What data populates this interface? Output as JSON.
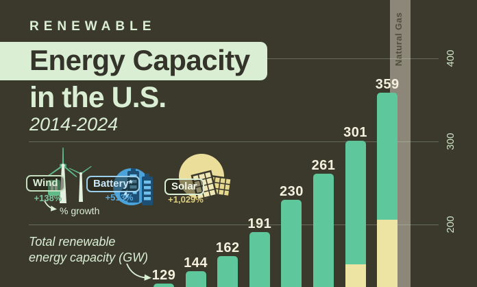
{
  "header": {
    "kicker": "RENEWABLE",
    "title_highlight": "Energy Capacity",
    "title_line2": "in the U.S.",
    "period": "2014-2024"
  },
  "legend": {
    "wind": {
      "label": "Wind",
      "growth": "+138%"
    },
    "battery": {
      "label": "Battery*",
      "growth": "+513%"
    },
    "solar": {
      "label": "Solar",
      "growth": "+1,029%"
    },
    "note": "% growth"
  },
  "chart_note": {
    "line1": "Total renewable",
    "line2": "energy capacity (GW)"
  },
  "chart_data": {
    "type": "bar",
    "title": "Renewable Energy Capacity in the U.S. 2014-2024",
    "ylabel": "Total renewable energy capacity (GW)",
    "unit": "GW",
    "yaxis": {
      "ticks": [
        400,
        300,
        200
      ],
      "visible_range_gw": [
        125,
        440
      ]
    },
    "bars": [
      {
        "value": 129
      },
      {
        "value": 144
      },
      {
        "value": 162
      },
      {
        "value": 191
      },
      {
        "value": 230
      },
      {
        "value": 261
      },
      {
        "value": 301,
        "solar_segment_top_gw": 152
      },
      {
        "value": 359,
        "solar_segment_top_gw": 206
      }
    ],
    "reference_bar": {
      "label": "Natural Gas"
    },
    "colors": {
      "background": "#3B392C",
      "renewable_bar": "#5EC89C",
      "solar_segment": "#EDE3A3",
      "natural_gas_bar": "#8C8778",
      "bar_label": "#F4F0DD",
      "mint": "#D9EED3",
      "blue": "#4BA2D9",
      "navy": "#1D5074",
      "sun_yellow": "#EBDE9B"
    }
  }
}
